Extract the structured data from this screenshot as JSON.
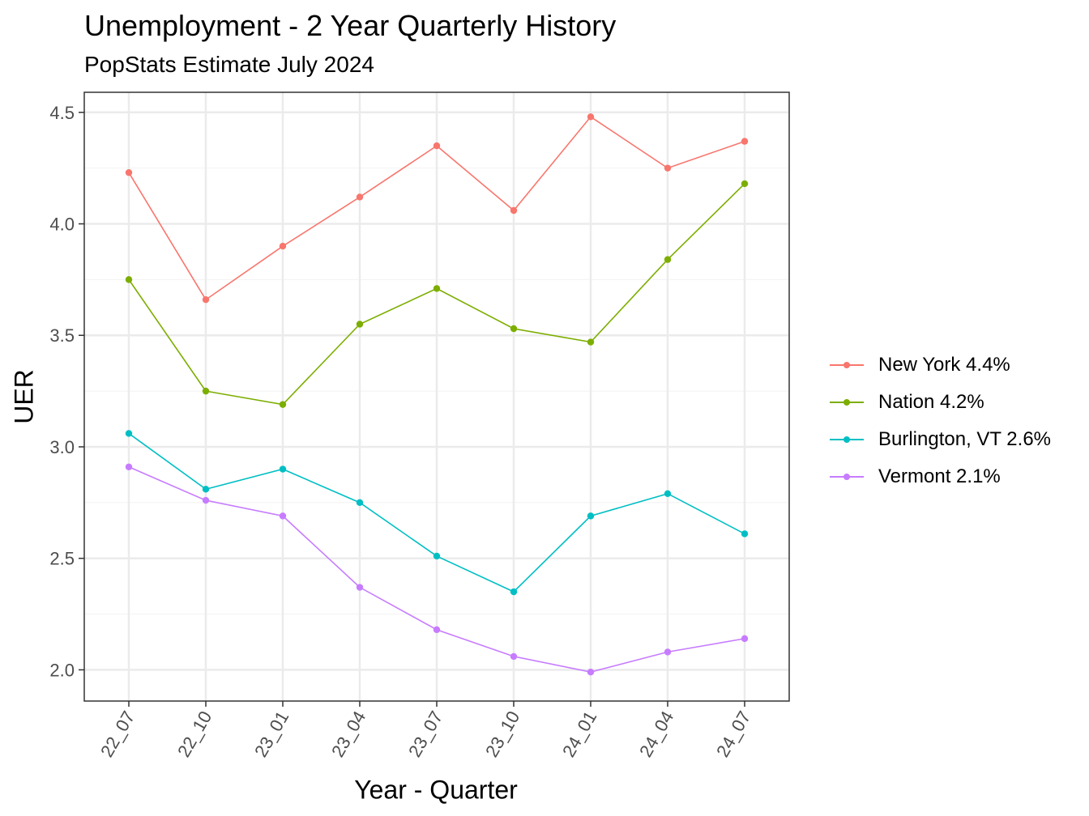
{
  "chart_data": {
    "type": "line",
    "title": "Unemployment - 2 Year Quarterly History",
    "subtitle": "PopStats Estimate July 2024",
    "xlabel": "Year - Quarter",
    "ylabel": "UER",
    "categories": [
      "22_07",
      "22_10",
      "23_01",
      "23_04",
      "23_07",
      "23_10",
      "24_01",
      "24_04",
      "24_07"
    ],
    "ylim": [
      1.86,
      4.59
    ],
    "yticks": [
      2.0,
      2.5,
      3.0,
      3.5,
      4.0,
      4.5
    ],
    "ytick_labels": [
      "2.0",
      "2.5",
      "3.0",
      "3.5",
      "4.0",
      "4.5"
    ],
    "grid": true,
    "legend_position": "right",
    "series": [
      {
        "name": "New York 4.4%",
        "color": "#F8766D",
        "values": [
          4.23,
          3.66,
          3.9,
          4.12,
          4.35,
          4.06,
          4.48,
          4.25,
          4.37
        ]
      },
      {
        "name": "Nation 4.2%",
        "color": "#7CAE00",
        "values": [
          3.75,
          3.25,
          3.19,
          3.55,
          3.71,
          3.53,
          3.47,
          3.84,
          4.18
        ]
      },
      {
        "name": "Burlington, VT 2.6%",
        "color": "#00BFC4",
        "values": [
          3.06,
          2.81,
          2.9,
          2.75,
          2.51,
          2.35,
          2.69,
          2.79,
          2.61
        ]
      },
      {
        "name": "Vermont 2.1%",
        "color": "#C77CFF",
        "values": [
          2.91,
          2.76,
          2.69,
          2.37,
          2.18,
          2.06,
          1.99,
          2.08,
          2.14
        ]
      }
    ]
  }
}
